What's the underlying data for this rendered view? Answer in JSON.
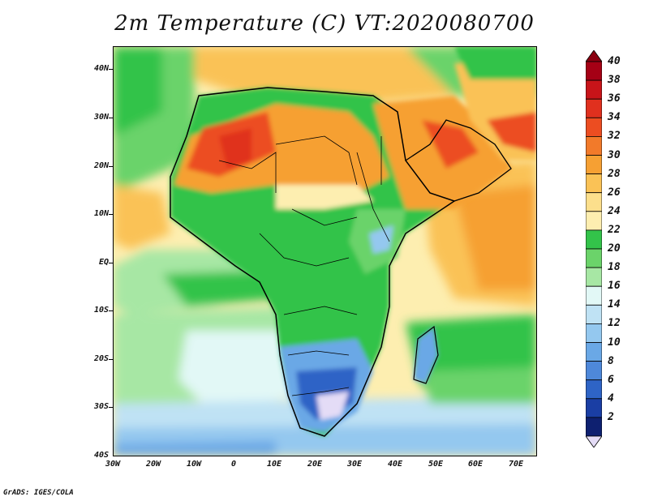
{
  "title": "2m Temperature (C) VT:2020080700",
  "credit": "GrADS: IGES/COLA",
  "map": {
    "projection": "lat-lon",
    "lon_range": [
      -30,
      75
    ],
    "lat_range": [
      -40,
      45
    ],
    "lat_labels": [
      "40N",
      "30N",
      "20N",
      "10N",
      "EQ",
      "10S",
      "20S",
      "30S",
      "40S"
    ],
    "lon_labels": [
      "30W",
      "20W",
      "10W",
      "0",
      "10E",
      "20E",
      "30E",
      "40E",
      "50E",
      "60E",
      "70E"
    ]
  },
  "colorbar": {
    "levels": [
      "40",
      "38",
      "36",
      "34",
      "32",
      "30",
      "28",
      "26",
      "24",
      "22",
      "20",
      "18",
      "16",
      "14",
      "12",
      "10",
      "8",
      "6",
      "4",
      "2"
    ],
    "colors": [
      "#a50015",
      "#c81419",
      "#e0301e",
      "#ec4d21",
      "#f27a2a",
      "#f6a033",
      "#fac256",
      "#fcdf8c",
      "#fdeeb0",
      "#33c34a",
      "#6bd36a",
      "#a7e7a4",
      "#e2f8f6",
      "#bfe2f4",
      "#94c8ef",
      "#6aa8e6",
      "#4e88da",
      "#2e64c6",
      "#1a3ea4",
      "#0e2070"
    ],
    "top_arrow_color": "#8a0010",
    "bottom_arrow_color": "#e4dcf6"
  }
}
